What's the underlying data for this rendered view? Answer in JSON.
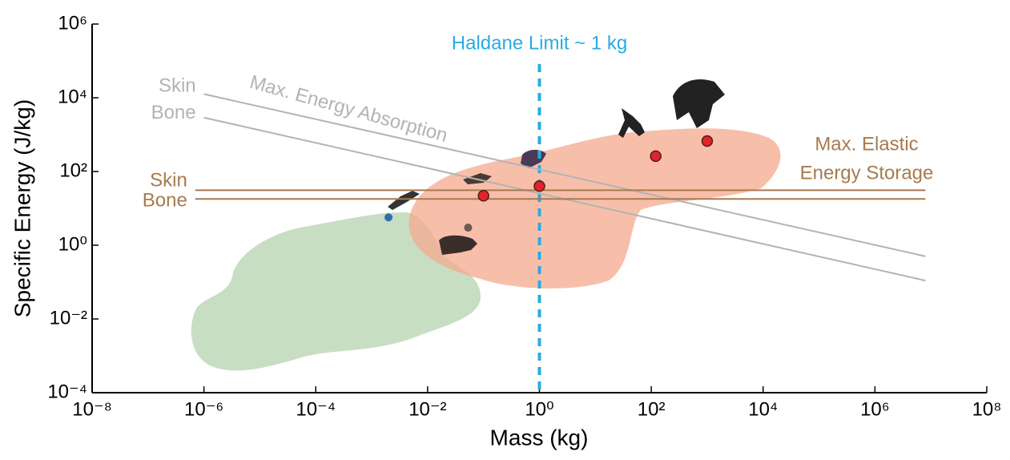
{
  "chart_data": {
    "type": "scatter",
    "xlabel": "Mass (kg)",
    "ylabel": "Specific Energy (J/kg)",
    "log_x": true,
    "log_y": true,
    "xlim": [
      1e-08,
      100000000.0
    ],
    "ylim": [
      0.0001,
      1000000
    ],
    "xticks": [
      {
        "value": 1e-08,
        "label": "10⁻⁸"
      },
      {
        "value": 1e-06,
        "label": "10⁻⁶"
      },
      {
        "value": 0.0001,
        "label": "10⁻⁴"
      },
      {
        "value": 0.01,
        "label": "10⁻²"
      },
      {
        "value": 1,
        "label": "10⁰"
      },
      {
        "value": 100,
        "label": "10²"
      },
      {
        "value": 10000,
        "label": "10⁴"
      },
      {
        "value": 1000000,
        "label": "10⁶"
      },
      {
        "value": 100000000,
        "label": "10⁸"
      }
    ],
    "yticks": [
      {
        "value": 0.0001,
        "label": "10⁻⁴"
      },
      {
        "value": 0.01,
        "label": "10⁻²"
      },
      {
        "value": 1,
        "label": "10⁰"
      },
      {
        "value": 100,
        "label": "10²"
      },
      {
        "value": 10000,
        "label": "10⁴"
      },
      {
        "value": 1000000,
        "label": "10⁶"
      }
    ],
    "series": [
      {
        "color": "#e0242a",
        "x": [
          0.1,
          1,
          120,
          1000
        ],
        "values": [
          22,
          40,
          260,
          670
        ]
      },
      {
        "color": "#2f6fb0",
        "x": [
          0.002
        ],
        "values": [
          5.7
        ]
      },
      {
        "color": "#6e5a55",
        "x": [
          0.053
        ],
        "values": [
          3
        ]
      }
    ],
    "line_groups": [
      {
        "label": [
          "Max. Energy Absorption"
        ],
        "color": "#b3b3b3",
        "series": [
          {
            "name": "Skin",
            "x": [
              1e-06,
              8000000
            ],
            "values": [
              12600,
              0.5
            ]
          },
          {
            "name": "Bone",
            "x": [
              1e-06,
              8000000
            ],
            "values": [
              2900,
              0.11
            ]
          }
        ]
      },
      {
        "label": [
          "Max. Elastic",
          "Energy Storage"
        ],
        "color": "#a87a4f",
        "series": [
          {
            "name": "Skin",
            "x": [
              7e-07,
              8000000
            ],
            "values": [
              31,
              31
            ]
          },
          {
            "name": "Bone",
            "x": [
              7e-07,
              8000000
            ],
            "values": [
              18,
              18
            ]
          }
        ]
      }
    ],
    "vline": {
      "x": 1,
      "label": "Haldane Limit ~ 1 kg",
      "color": "#29abe2"
    }
  }
}
